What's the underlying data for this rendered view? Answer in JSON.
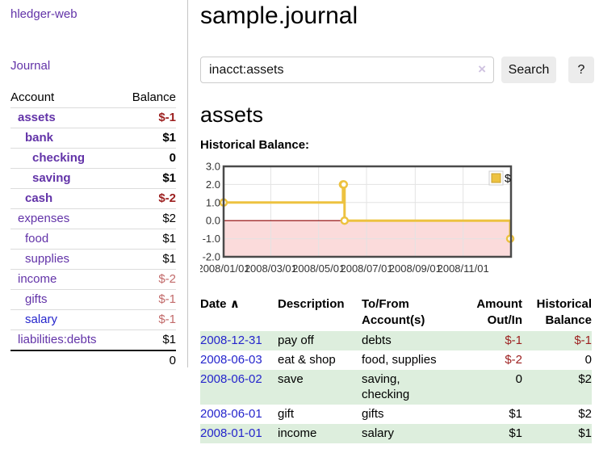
{
  "sidebar": {
    "brand": "hledger-web",
    "nav": {
      "journal": "Journal"
    },
    "accounts_table": {
      "col_account": "Account",
      "col_balance": "Balance",
      "rows": [
        {
          "account": "assets",
          "depth": 1,
          "bold": true,
          "balance": "$-1",
          "tone": "negative-strong",
          "link_color": "purple"
        },
        {
          "account": "bank",
          "depth": 2,
          "bold": true,
          "balance": "$1",
          "tone": "plain",
          "link_color": "purple"
        },
        {
          "account": "checking",
          "depth": 3,
          "bold": true,
          "balance": "0",
          "tone": "plain",
          "link_color": "purple"
        },
        {
          "account": "saving",
          "depth": 3,
          "bold": true,
          "balance": "$1",
          "tone": "plain",
          "link_color": "purple"
        },
        {
          "account": "cash",
          "depth": 2,
          "bold": true,
          "balance": "$-2",
          "tone": "negative-strong",
          "link_color": "purple"
        },
        {
          "account": "expenses",
          "depth": 1,
          "bold": false,
          "balance": "$2",
          "tone": "plain",
          "link_color": "purple"
        },
        {
          "account": "food",
          "depth": 2,
          "bold": false,
          "balance": "$1",
          "tone": "plain",
          "link_color": "purple"
        },
        {
          "account": "supplies",
          "depth": 2,
          "bold": false,
          "balance": "$1",
          "tone": "plain",
          "link_color": "purple"
        },
        {
          "account": "income",
          "depth": 1,
          "bold": false,
          "balance": "$-2",
          "tone": "negative-soft",
          "link_color": "purple"
        },
        {
          "account": "gifts",
          "depth": 2,
          "bold": false,
          "balance": "$-1",
          "tone": "negative-soft",
          "link_color": "purple"
        },
        {
          "account": "salary",
          "depth": 2,
          "bold": false,
          "balance": "$-1",
          "tone": "negative-soft",
          "link_color": "blue"
        },
        {
          "account": "liabilities:debts",
          "depth": 1,
          "bold": false,
          "balance": "$1",
          "tone": "plain",
          "link_color": "purple"
        }
      ],
      "total": "0"
    }
  },
  "main": {
    "title": "sample.journal",
    "search": {
      "value": "inacct:assets",
      "clear_icon": "×",
      "search_button": "Search",
      "help_button": "?"
    },
    "account_heading": "assets",
    "chart_heading": "Historical Balance:"
  },
  "chart_data": {
    "type": "line",
    "title": "Historical Balance",
    "step": true,
    "series": [
      {
        "name": "$",
        "color": "#edc240",
        "points": [
          [
            "2008-01-01",
            1
          ],
          [
            "2008-06-01",
            2
          ],
          [
            "2008-06-02",
            2
          ],
          [
            "2008-06-03",
            0
          ],
          [
            "2008-12-31",
            -1
          ]
        ]
      }
    ],
    "xrange": [
      "2008-01-01",
      "2009-01-01"
    ],
    "xticks": [
      {
        "date": "2008-01-01",
        "label": "2008/01/01"
      },
      {
        "date": "2008-03-01",
        "label": "2008/03/01"
      },
      {
        "date": "2008-05-01",
        "label": "2008/05/01"
      },
      {
        "date": "2008-07-01",
        "label": "2008/07/01"
      },
      {
        "date": "2008-09-01",
        "label": "2008/09/01"
      },
      {
        "date": "2008-11-01",
        "label": "2008/11/01"
      }
    ],
    "ylim": [
      -2,
      3
    ],
    "yticks": [
      {
        "v": 3,
        "label": "3.0"
      },
      {
        "v": 2,
        "label": "2.0"
      },
      {
        "v": 1,
        "label": "1.0"
      },
      {
        "v": 0,
        "label": "0.0"
      },
      {
        "v": -1,
        "label": "-1.0"
      },
      {
        "v": -2,
        "label": "-2.0"
      }
    ],
    "legend": {
      "label": "$",
      "position": "top-right"
    },
    "grid": true,
    "negative_region_color": "#fbdbdb",
    "zero_line_color": "#8b0000",
    "border_color": "#4a4a4a",
    "gridline_color": "#e3e3e3"
  },
  "register_table": {
    "headers": {
      "date": "Date",
      "description": "Description",
      "accounts": "To/From Account(s)",
      "amount": "Amount Out/In",
      "balance": "Historical Balance"
    },
    "sort_indicator": "∧",
    "rows": [
      {
        "date": "2008-12-31",
        "description": "pay off",
        "accounts": "debts",
        "amount": "$-1",
        "balance": "$-1"
      },
      {
        "date": "2008-06-03",
        "description": "eat & shop",
        "accounts": "food, supplies",
        "amount": "$-2",
        "balance": "0"
      },
      {
        "date": "2008-06-02",
        "description": "save",
        "accounts": "saving, checking",
        "amount": "0",
        "balance": "$2"
      },
      {
        "date": "2008-06-01",
        "description": "gift",
        "accounts": "gifts",
        "amount": "$1",
        "balance": "$2"
      },
      {
        "date": "2008-01-01",
        "description": "income",
        "accounts": "salary",
        "amount": "$1",
        "balance": "$1"
      }
    ]
  },
  "colors": {
    "link_purple": "#6233a8",
    "link_blue": "#2525cc",
    "negative_strong": "#9c1f1f",
    "negative_soft": "#c26a6a",
    "row_stripe_green": "#ddeedd",
    "series_gold": "#edc240",
    "button_gray": "#ececec"
  }
}
